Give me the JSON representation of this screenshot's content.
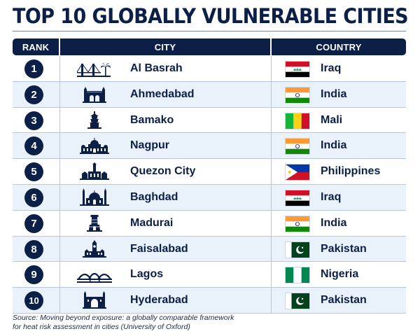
{
  "title": "TOP 10 GLOBALLY VULNERABLE CITIES",
  "headers": {
    "rank": "RANK",
    "city": "CITY",
    "country": "COUNTRY"
  },
  "rows": [
    {
      "rank": "1",
      "city": "Al Basrah",
      "country": "Iraq",
      "flag": "iraq-flag",
      "city_icon": "bridge-palm-skyline-icon"
    },
    {
      "rank": "2",
      "city": "Ahmedabad",
      "country": "India",
      "flag": "india-flag",
      "city_icon": "arched-gate-icon"
    },
    {
      "rank": "3",
      "city": "Bamako",
      "country": "Mali",
      "flag": "mali-flag",
      "city_icon": "pagoda-tower-icon"
    },
    {
      "rank": "4",
      "city": "Nagpur",
      "country": "India",
      "flag": "india-flag",
      "city_icon": "domed-palace-icon"
    },
    {
      "rank": "5",
      "city": "Quezon City",
      "country": "Philippines",
      "flag": "philippines-flag",
      "city_icon": "memorial-shrine-icon"
    },
    {
      "rank": "6",
      "city": "Baghdad",
      "country": "Iraq",
      "flag": "iraq-flag",
      "city_icon": "mosque-icon"
    },
    {
      "rank": "7",
      "city": "Madurai",
      "country": "India",
      "flag": "india-flag",
      "city_icon": "temple-gopuram-icon"
    },
    {
      "rank": "8",
      "city": "Faisalabad",
      "country": "Pakistan",
      "flag": "pakistan-flag",
      "city_icon": "clock-tower-icon"
    },
    {
      "rank": "9",
      "city": "Lagos",
      "country": "Nigeria",
      "flag": "nigeria-flag",
      "city_icon": "arch-bridge-icon"
    },
    {
      "rank": "10",
      "city": "Hyderabad",
      "country": "Pakistan",
      "flag": "pakistan-flag",
      "city_icon": "charminar-icon"
    }
  ],
  "source": {
    "line1": "Source: Moving beyond exposure: a globally comparable framework",
    "line2": "for heat risk assessment in cities (University of Oxford)"
  },
  "colors": {
    "navy": "#0b1f47",
    "row_alt": "#e9f1fb",
    "divider": "#b7c7de"
  }
}
